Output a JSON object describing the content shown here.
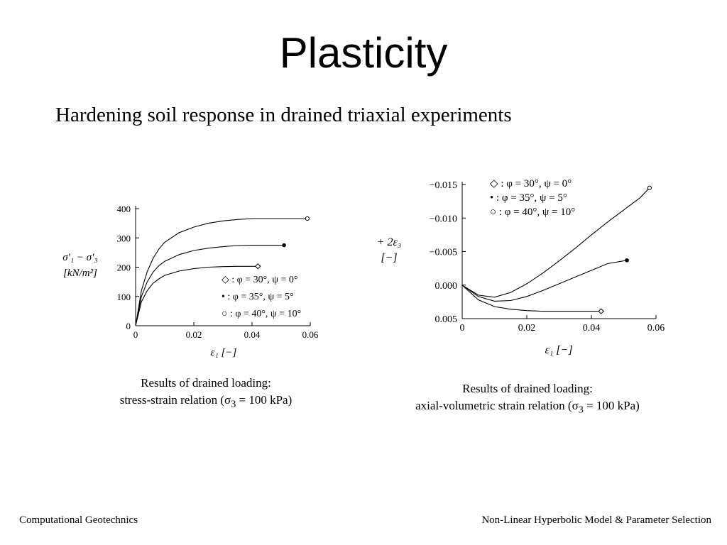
{
  "slide": {
    "title": "Plasticity",
    "subtitle": "Hardening soil response in drained triaxial experiments",
    "footer_left": "Computational Geotechnics",
    "footer_right": "Non-Linear Hyperbolic Model & Parameter Selection"
  },
  "captions": {
    "left_line1": "Results of drained loading:",
    "left_line2_pre": "stress-strain relation (",
    "left_line2_post": " = 100 kPa)",
    "right_line1": "Results of drained loading:",
    "right_line2_pre": "axial-volumetric strain relation (",
    "right_line2_post": " = 100 kPa)",
    "sigma_symbol": "σ",
    "sigma_sub": "3"
  },
  "chart_data": [
    {
      "type": "line",
      "ylabel_line1": "σ′₁ − σ′₃",
      "ylabel_line2": "[kN/m²]",
      "xlabel": "ε₁ [−]",
      "xlim": [
        0,
        0.06
      ],
      "ylim": [
        0,
        400
      ],
      "x_ticks": [
        "0",
        "0.02",
        "0.04",
        "0.06"
      ],
      "y_ticks": [
        "0",
        "100",
        "200",
        "300",
        "400"
      ],
      "x_tick_values": [
        0,
        0.02,
        0.04,
        0.06
      ],
      "y_tick_values": [
        0,
        100,
        200,
        300,
        400
      ],
      "grid": false,
      "legend_position": "bottom-right",
      "series": [
        {
          "name": "◇ : φ = 30°, ψ = 0°",
          "marker": "diamond",
          "x": [
            0,
            0.002,
            0.004,
            0.006,
            0.008,
            0.01,
            0.015,
            0.02,
            0.025,
            0.03,
            0.035,
            0.042
          ],
          "y": [
            0,
            82,
            120,
            145,
            160,
            172,
            187,
            195,
            200,
            202,
            203,
            203
          ]
        },
        {
          "name": "• : φ = 35°, ψ = 5°",
          "marker": "filled-circle",
          "x": [
            0,
            0.002,
            0.004,
            0.006,
            0.008,
            0.01,
            0.015,
            0.02,
            0.025,
            0.03,
            0.035,
            0.04,
            0.051
          ],
          "y": [
            0,
            100,
            150,
            183,
            205,
            220,
            243,
            257,
            265,
            270,
            274,
            275,
            275
          ]
        },
        {
          "name": "○ : φ = 40°, ψ = 10°",
          "marker": "open-circle",
          "x": [
            0,
            0.002,
            0.004,
            0.006,
            0.008,
            0.01,
            0.015,
            0.02,
            0.025,
            0.03,
            0.035,
            0.04,
            0.059
          ],
          "y": [
            0,
            120,
            185,
            230,
            262,
            285,
            318,
            337,
            350,
            358,
            363,
            366,
            366
          ]
        }
      ]
    },
    {
      "type": "line",
      "ylabel_line1": "+ 2ε₃",
      "ylabel_line2": "[−]",
      "xlabel": "ε₁ [−]",
      "xlim": [
        0,
        0.06
      ],
      "ylim": [
        -0.015,
        0.005
      ],
      "y_inverted": true,
      "x_ticks": [
        "0",
        "0.02",
        "0.04",
        "0.06"
      ],
      "y_ticks": [
        "−0.015",
        "−0.010",
        "−0.005",
        "0.000",
        "0.005"
      ],
      "x_tick_values": [
        0,
        0.02,
        0.04,
        0.06
      ],
      "y_tick_values": [
        -0.015,
        -0.01,
        -0.005,
        0,
        0.005
      ],
      "grid": false,
      "legend_position": "top-left",
      "series": [
        {
          "name": "◇ : φ = 30°, ψ = 0°",
          "marker": "diamond",
          "x": [
            0,
            0.005,
            0.01,
            0.015,
            0.02,
            0.025,
            0.03,
            0.035,
            0.043
          ],
          "y": [
            0,
            0.0022,
            0.0032,
            0.0036,
            0.0038,
            0.0039,
            0.0039,
            0.0039,
            0.0039
          ]
        },
        {
          "name": "• : φ = 35°, ψ = 5°",
          "marker": "filled-circle",
          "x": [
            0,
            0.005,
            0.01,
            0.015,
            0.02,
            0.025,
            0.03,
            0.035,
            0.04,
            0.045,
            0.051
          ],
          "y": [
            0,
            0.0017,
            0.0024,
            0.0023,
            0.0017,
            0.0008,
            -0.0002,
            -0.0012,
            -0.0022,
            -0.0032,
            -0.0037
          ]
        },
        {
          "name": "○ : φ = 40°, ψ = 10°",
          "marker": "open-circle",
          "x": [
            0,
            0.005,
            0.01,
            0.015,
            0.02,
            0.025,
            0.03,
            0.035,
            0.04,
            0.045,
            0.05,
            0.055,
            0.058
          ],
          "y": [
            0,
            0.0015,
            0.0018,
            0.0011,
            -0.0002,
            -0.0018,
            -0.0036,
            -0.0055,
            -0.0075,
            -0.0094,
            -0.0112,
            -0.013,
            -0.0145
          ]
        }
      ]
    }
  ]
}
